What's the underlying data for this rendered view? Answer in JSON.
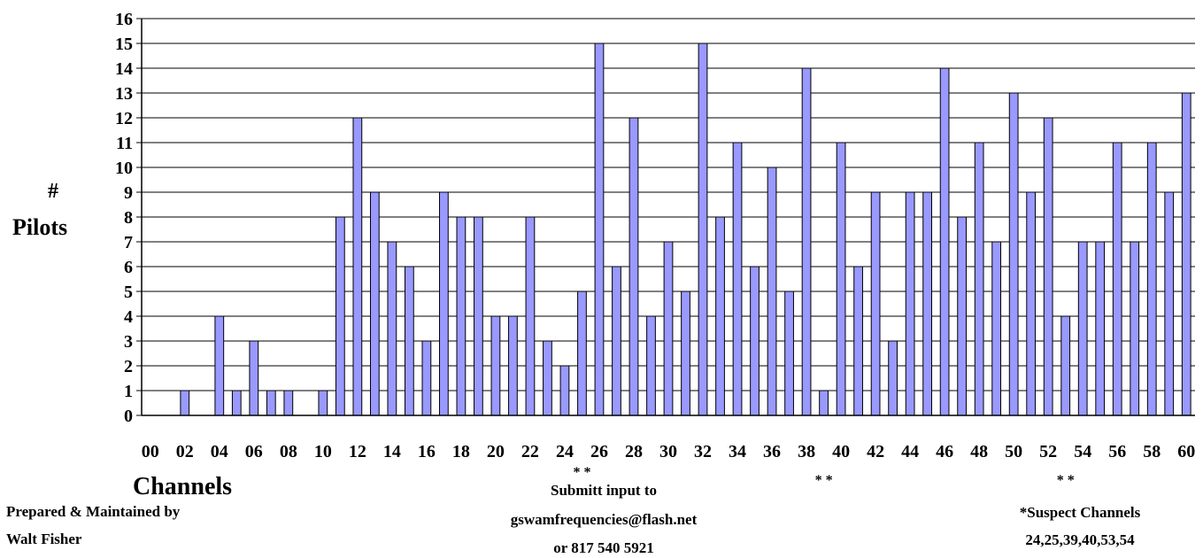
{
  "chart_data": {
    "type": "bar",
    "categories": [
      "00",
      "01",
      "02",
      "03",
      "04",
      "05",
      "06",
      "07",
      "08",
      "09",
      "10",
      "11",
      "12",
      "13",
      "14",
      "15",
      "16",
      "17",
      "18",
      "19",
      "20",
      "21",
      "22",
      "23",
      "24",
      "25",
      "26",
      "27",
      "28",
      "29",
      "30",
      "31",
      "32",
      "33",
      "34",
      "35",
      "36",
      "37",
      "38",
      "39",
      "40",
      "41",
      "42",
      "43",
      "44",
      "45",
      "46",
      "47",
      "48",
      "49",
      "50",
      "51",
      "52",
      "53",
      "54",
      "55",
      "56",
      "57",
      "58",
      "59",
      "60"
    ],
    "tick_labels": [
      "00",
      "02",
      "04",
      "06",
      "08",
      "10",
      "12",
      "14",
      "16",
      "18",
      "20",
      "22",
      "24",
      "26",
      "28",
      "30",
      "32",
      "34",
      "36",
      "38",
      "40",
      "42",
      "44",
      "46",
      "48",
      "50",
      "52",
      "54",
      "56",
      "58",
      "60"
    ],
    "values": [
      0,
      0,
      1,
      0,
      4,
      1,
      3,
      1,
      1,
      0,
      1,
      8,
      12,
      9,
      7,
      6,
      3,
      9,
      8,
      8,
      4,
      4,
      8,
      3,
      2,
      5,
      15,
      6,
      12,
      4,
      7,
      5,
      15,
      8,
      11,
      6,
      10,
      5,
      14,
      1,
      11,
      6,
      9,
      3,
      9,
      9,
      14,
      8,
      11,
      7,
      13,
      9,
      12,
      4,
      7,
      7,
      11,
      7,
      11,
      9,
      13
    ],
    "ylim": [
      0,
      16
    ],
    "yticks": [
      "0",
      "1",
      "2",
      "3",
      "4",
      "5",
      "6",
      "7",
      "8",
      "9",
      "10",
      "11",
      "12",
      "13",
      "14",
      "15",
      "16"
    ],
    "ylabel_line1": "#",
    "ylabel_line2": "Pilots",
    "xlabel": "Channels",
    "grid": true,
    "bar_color": "#9999ff",
    "suspect_marks": [
      {
        "text": "* *",
        "between": [
          "24",
          "26"
        ]
      },
      {
        "text": "* *",
        "between": [
          "38",
          "40"
        ]
      },
      {
        "text": "* *",
        "between": [
          "52",
          "54"
        ]
      }
    ]
  },
  "notes": {
    "prepared_line1": "Prepared & Maintained by",
    "prepared_line2": "Walt Fisher",
    "submit_line1": "Submitt input to",
    "submit_line2": "gswamfrequencies@flash.net",
    "submit_line3": "or 817 540 5921",
    "suspect_line1": "*Suspect Channels",
    "suspect_line2": "24,25,39,40,53,54"
  }
}
